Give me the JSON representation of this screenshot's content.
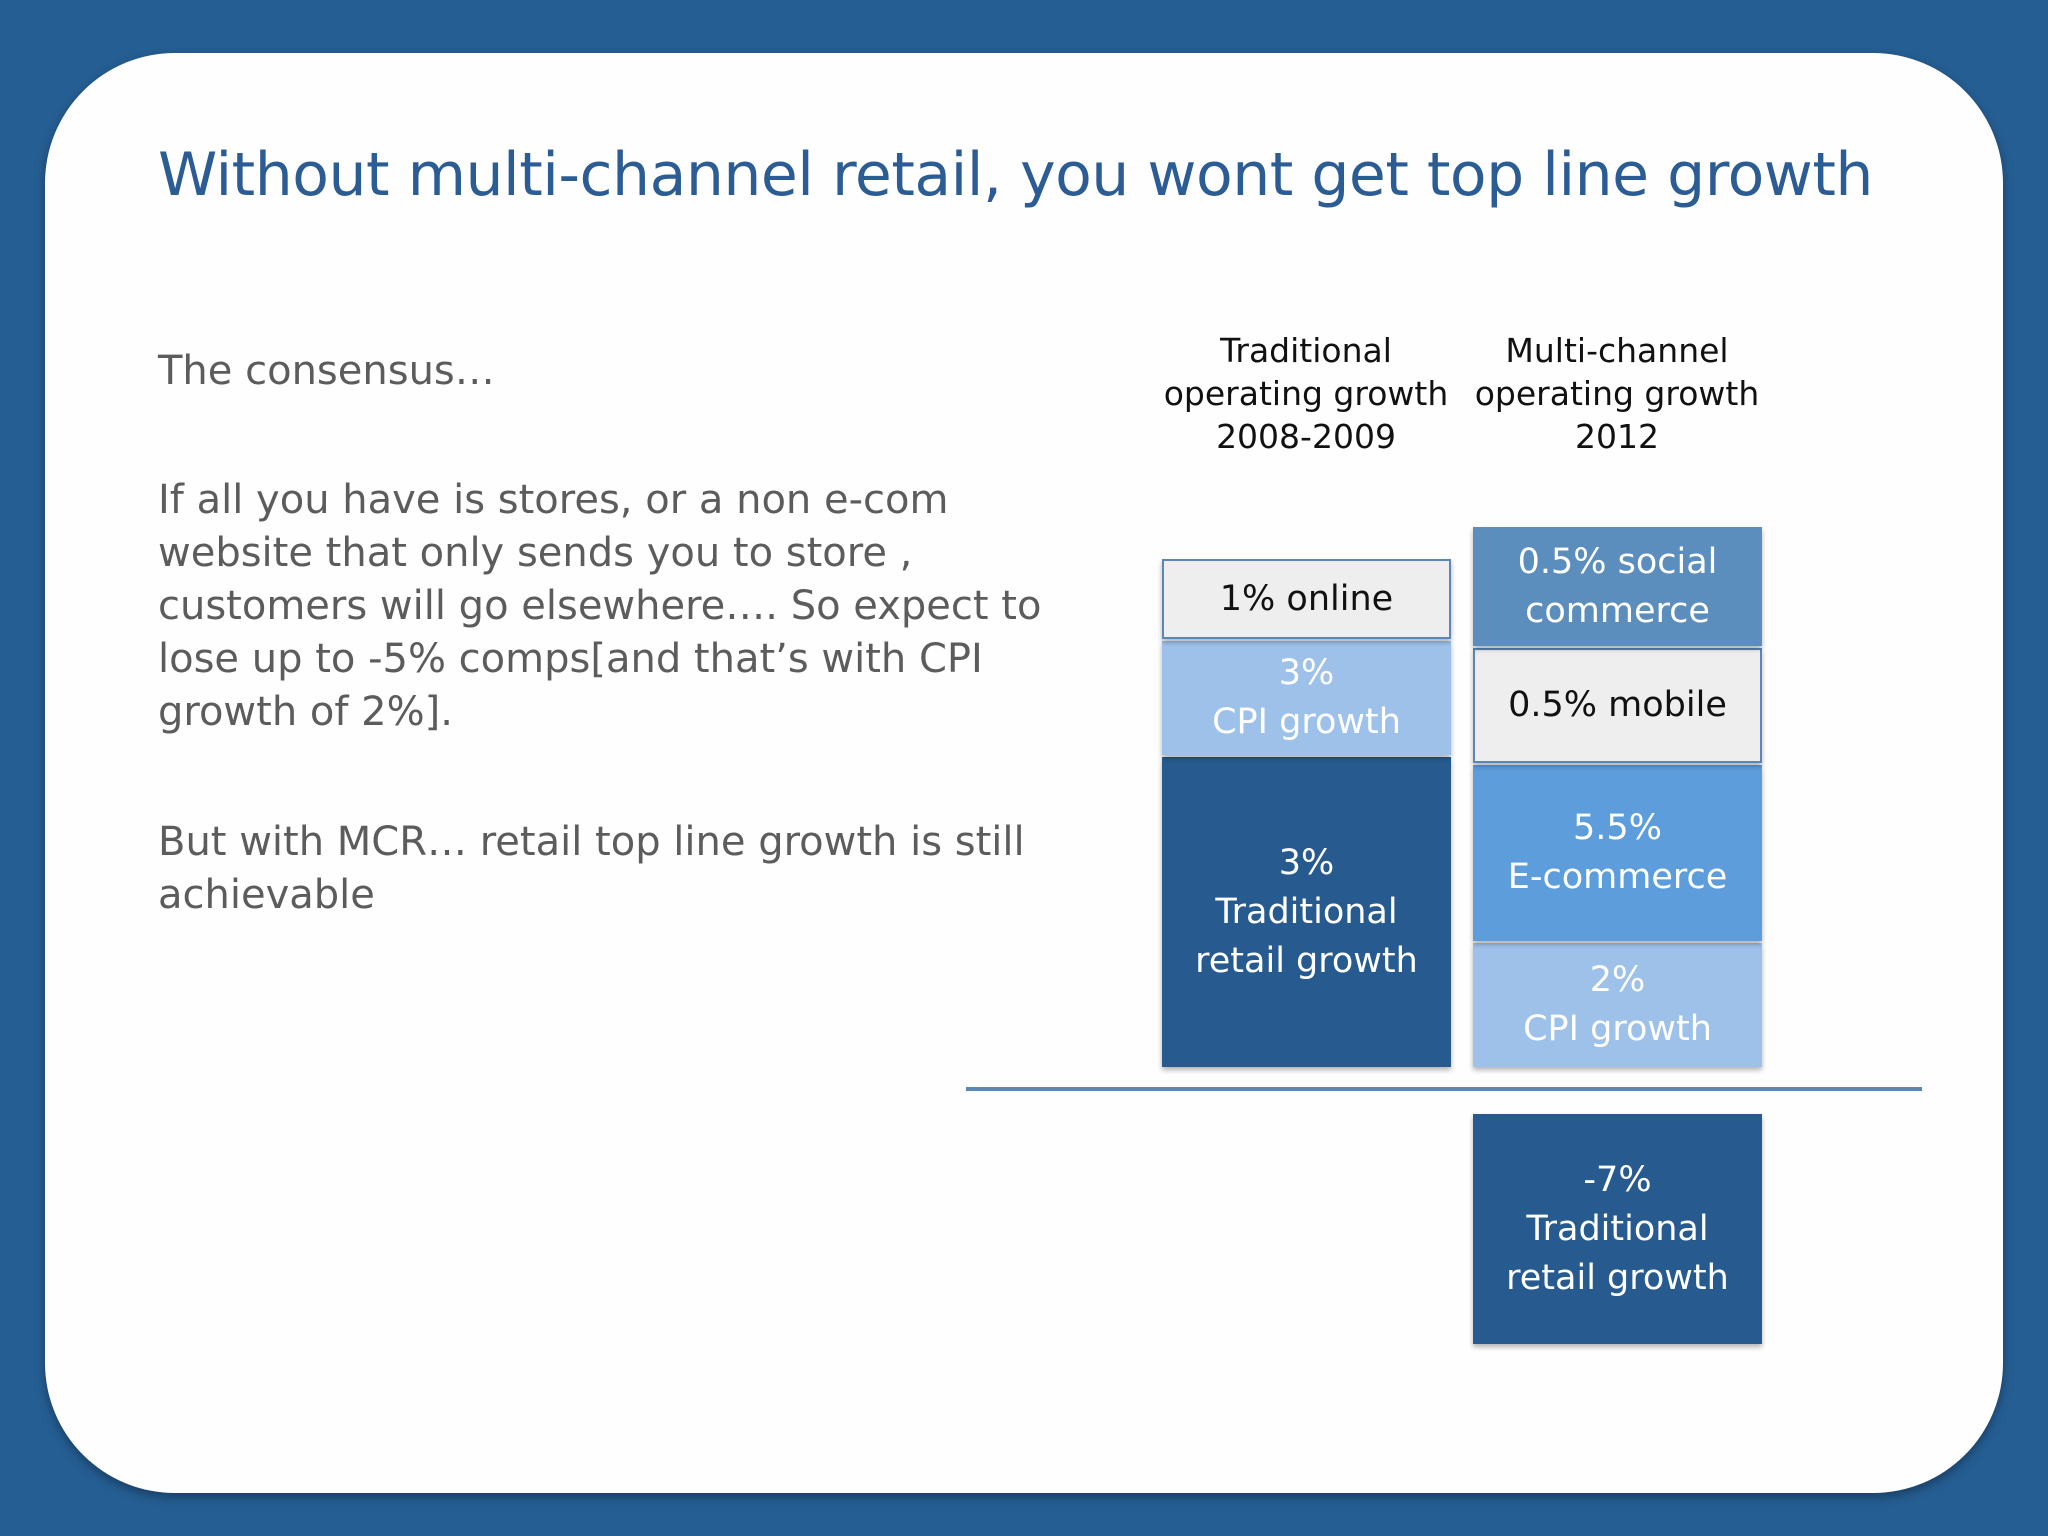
{
  "title": "Without multi-channel retail, you wont get top line growth",
  "paragraphs": [
    "The consensus…",
    "If all you have is stores, or a non e-com website that only sends you to store , customers will go elsewhere…. So  expect to lose up to -5% comps[and that’s with CPI growth of 2%].",
    "But with MCR… retail top line growth is still achievable"
  ],
  "colors": {
    "frame": "#255e93",
    "title": "#2c5c94",
    "dark_blue": "#275a8e",
    "mid_blue": "#5d9ddb",
    "light_blue": "#9ec1ea",
    "steel_blue": "#5b8dbd",
    "light_gray": "#eeeeee"
  },
  "chart_data": {
    "type": "bar",
    "stacked": true,
    "columns": [
      {
        "header": [
          "Traditional",
          "operating growth",
          "2008-2009"
        ],
        "segments": [
          {
            "value": 3,
            "lines": [
              "3%",
              "Traditional",
              "retail growth"
            ],
            "color": "#275a8e"
          },
          {
            "value": 3,
            "lines": [
              "3%",
              "CPI growth"
            ],
            "color": "#9ec1ea"
          },
          {
            "value": 1,
            "lines": [
              "1% online"
            ],
            "color": "#eeeeee"
          }
        ]
      },
      {
        "header": [
          "Multi-channel",
          "operating growth",
          "2012"
        ],
        "segments": [
          {
            "value": 2,
            "lines": [
              "2%",
              "CPI growth"
            ],
            "color": "#9ec1ea"
          },
          {
            "value": 5.5,
            "lines": [
              "5.5%",
              "E-commerce"
            ],
            "color": "#5d9ddb"
          },
          {
            "value": 0.5,
            "lines": [
              "0.5% mobile"
            ],
            "color": "#eeeeee"
          },
          {
            "value": 0.5,
            "lines": [
              "0.5% social",
              "commerce"
            ],
            "color": "#5b8dbd"
          },
          {
            "value": -7,
            "lines": [
              "-7%",
              "Traditional",
              "retail growth"
            ],
            "color": "#275a8e"
          }
        ]
      }
    ]
  }
}
